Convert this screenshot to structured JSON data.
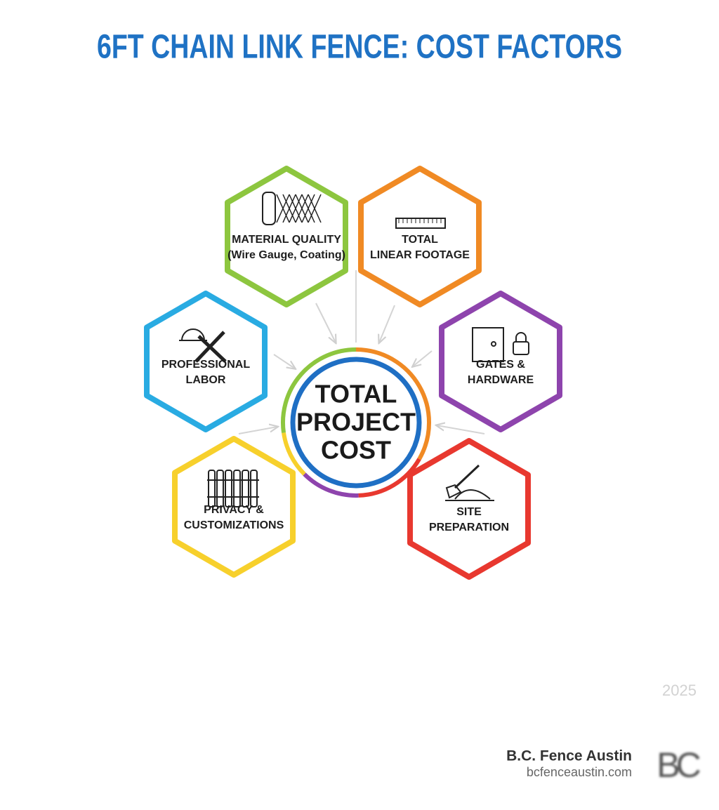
{
  "title": "6FT CHAIN LINK FENCE: COST FACTORS",
  "center": {
    "lines": [
      "TOTAL",
      "PROJECT",
      "COST"
    ]
  },
  "nodes": [
    {
      "lines": [
        "MATERIAL QUALITY",
        "(Wire Gauge, Coating)"
      ]
    },
    {
      "lines": [
        "TOTAL",
        "LINEAR FOOTAGE"
      ]
    },
    {
      "lines": [
        "PROFESSIONAL",
        "LABOR"
      ]
    },
    {
      "lines": [
        "GATES &",
        "HARDWARE"
      ]
    },
    {
      "lines": [
        "PRIVACY &",
        "CUSTOMIZATIONS"
      ]
    },
    {
      "lines": [
        "SITE",
        "PREPARATION"
      ]
    }
  ],
  "year": "2025",
  "brand": {
    "name": "B.C. Fence Austin",
    "url": "bcfenceaustin.com",
    "logo": "BC"
  }
}
